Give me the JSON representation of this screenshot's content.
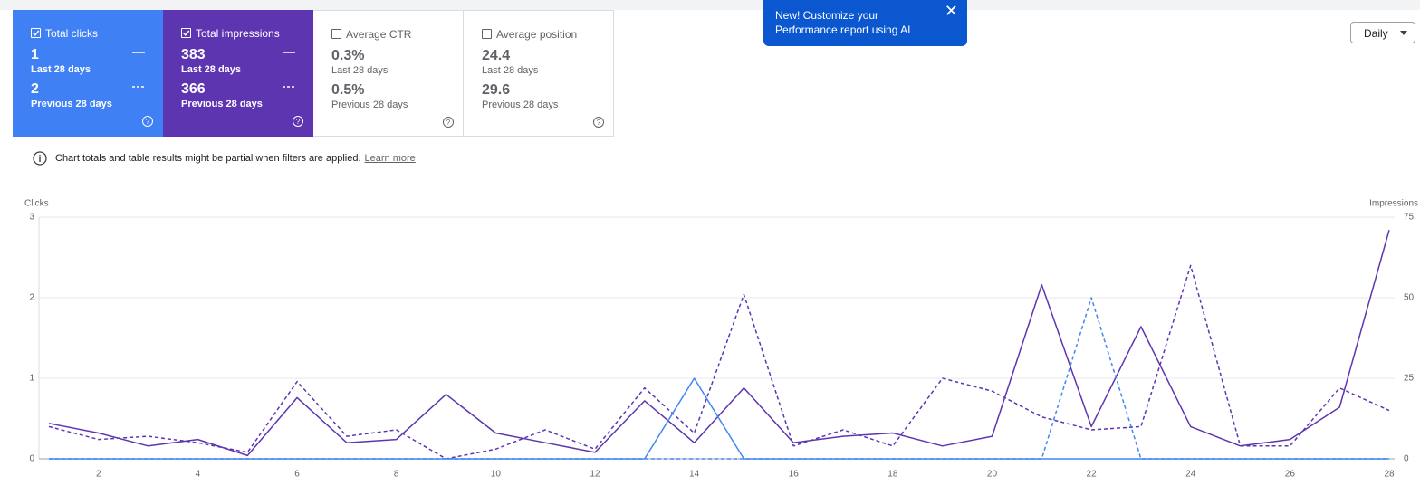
{
  "cards": [
    {
      "label": "Total clicks",
      "checked": true,
      "color": "#3f81f4",
      "current": "1",
      "current_label": "Last 28 days",
      "previous": "2",
      "previous_label": "Previous 28 days"
    },
    {
      "label": "Total impressions",
      "checked": true,
      "color": "#5e35b1",
      "current": "383",
      "current_label": "Last 28 days",
      "previous": "366",
      "previous_label": "Previous 28 days"
    },
    {
      "label": "Average CTR",
      "checked": false,
      "current": "0.3%",
      "current_label": "Last 28 days",
      "previous": "0.5%",
      "previous_label": "Previous 28 days"
    },
    {
      "label": "Average position",
      "checked": false,
      "current": "24.4",
      "current_label": "Last 28 days",
      "previous": "29.6",
      "previous_label": "Previous 28 days"
    }
  ],
  "popup": {
    "text": "New! Customize your Performance report using AI"
  },
  "dropdown": {
    "label": "Daily"
  },
  "notice": {
    "text": "Chart totals and table results might be partial when filters are applied.",
    "link": "Learn more"
  },
  "chart_data": {
    "type": "line",
    "y_label": "Clicks",
    "y2_label": "Impressions",
    "x": [
      1,
      2,
      3,
      4,
      5,
      6,
      7,
      8,
      9,
      10,
      11,
      12,
      13,
      14,
      15,
      16,
      17,
      18,
      19,
      20,
      21,
      22,
      23,
      24,
      25,
      26,
      27,
      28
    ],
    "xlim": [
      1,
      28
    ],
    "xticks": [
      2,
      4,
      6,
      8,
      10,
      12,
      14,
      16,
      18,
      20,
      22,
      24,
      26,
      28
    ],
    "ylim": [
      0,
      3
    ],
    "yticks": [
      0,
      1,
      2,
      3
    ],
    "y2lim": [
      0,
      75
    ],
    "y2ticks": [
      0,
      25,
      50,
      75
    ],
    "grid": true,
    "series": [
      {
        "color": "#5e35b1",
        "dashed": true,
        "axis": "y2",
        "values": [
          10,
          6,
          7,
          5,
          2,
          24,
          7,
          9,
          0,
          3,
          9,
          3,
          22,
          8,
          51,
          4,
          9,
          4,
          25,
          21,
          13,
          9,
          10,
          60,
          4,
          4,
          22,
          15
        ]
      },
      {
        "color": "#5e35b1",
        "dashed": false,
        "axis": "y2",
        "values": [
          11,
          8,
          4,
          6,
          1,
          19,
          5,
          6,
          20,
          8,
          5,
          2,
          18,
          5,
          22,
          5,
          7,
          8,
          4,
          7,
          54,
          10,
          41,
          10,
          4,
          6,
          16,
          71
        ]
      },
      {
        "color": "#4285f4",
        "dashed": true,
        "axis": "y",
        "values": [
          0,
          0,
          0,
          0,
          0,
          0,
          0,
          0,
          0,
          0,
          0,
          0,
          0,
          0,
          0,
          0,
          0,
          0,
          0,
          0,
          0,
          2,
          0,
          0,
          0,
          0,
          0,
          0
        ]
      },
      {
        "color": "#4285f4",
        "dashed": false,
        "axis": "y",
        "values": [
          0,
          0,
          0,
          0,
          0,
          0,
          0,
          0,
          0,
          0,
          0,
          0,
          0,
          1,
          0,
          0,
          0,
          0,
          0,
          0,
          0,
          0,
          0,
          0,
          0,
          0,
          0,
          0
        ]
      }
    ]
  }
}
